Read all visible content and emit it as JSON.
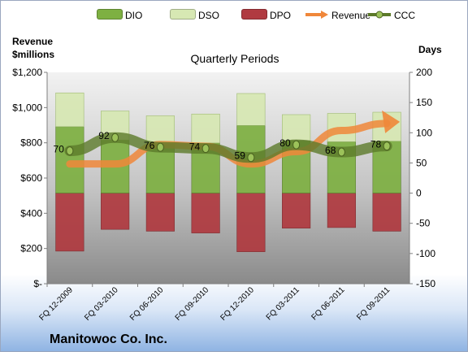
{
  "company": "Manitowoc Co. Inc.",
  "chart_data": {
    "type": "bar",
    "title": "Quarterly Periods",
    "ylabel_left": [
      "Revenue",
      "$millions"
    ],
    "ylabel_right": "Days",
    "categories": [
      "FQ 12-2009",
      "FQ 03-2010",
      "FQ 06-2010",
      "FQ 09-2010",
      "FQ 12-2010",
      "FQ 03-2011",
      "FQ 06-2011",
      "FQ 09-2011"
    ],
    "left_axis": {
      "range": [
        0,
        1200
      ],
      "ticks": [
        "$-",
        "$200",
        "$400",
        "$600",
        "$800",
        "$1,000",
        "$1,200"
      ],
      "tick_values": [
        0,
        200,
        400,
        600,
        800,
        1000,
        1200
      ]
    },
    "right_axis": {
      "range": [
        -150,
        200
      ],
      "ticks": [
        "-150",
        "-100",
        "-50",
        "0",
        "50",
        "100",
        "150",
        "200"
      ],
      "tick_values": [
        -150,
        -100,
        -50,
        0,
        50,
        100,
        150,
        200
      ]
    },
    "stacked_series": [
      {
        "name": "DIO",
        "axis": "right",
        "color": "#7eb042",
        "values": [
          110,
          88,
          81,
          83,
          112,
          87,
          85,
          86
        ]
      },
      {
        "name": "DSO",
        "axis": "right",
        "color": "#d7e8b3",
        "values": [
          56,
          48,
          47,
          48,
          53,
          43,
          47,
          48
        ]
      },
      {
        "name": "DPO",
        "axis": "right",
        "color": "#b03a40",
        "values": [
          -96,
          -60,
          -63,
          -66,
          -97,
          -58,
          -57,
          -63
        ]
      }
    ],
    "revenue": {
      "name": "Revenue",
      "axis": "left",
      "color": "#f0873a",
      "values": [
        680,
        680,
        790,
        780,
        680,
        750,
        870,
        910
      ]
    },
    "ccc": {
      "name": "CCC",
      "axis": "right",
      "color": "#5d7a2a",
      "values": [
        70,
        92,
        76,
        74,
        59,
        80,
        68,
        78
      ],
      "labels": [
        "70",
        "92",
        "76",
        "74",
        "59",
        "80",
        "68",
        "78"
      ]
    },
    "legend": [
      {
        "name": "DIO",
        "color": "#7eb042",
        "kind": "bar"
      },
      {
        "name": "DSO",
        "color": "#d7e8b3",
        "kind": "bar"
      },
      {
        "name": "DPO",
        "color": "#b03a40",
        "kind": "bar"
      },
      {
        "name": "Revenue",
        "color": "#f0873a",
        "kind": "arrow"
      },
      {
        "name": "CCC",
        "color": "#5d7a2a",
        "kind": "line"
      }
    ],
    "grid": false,
    "legend_position": "top"
  }
}
